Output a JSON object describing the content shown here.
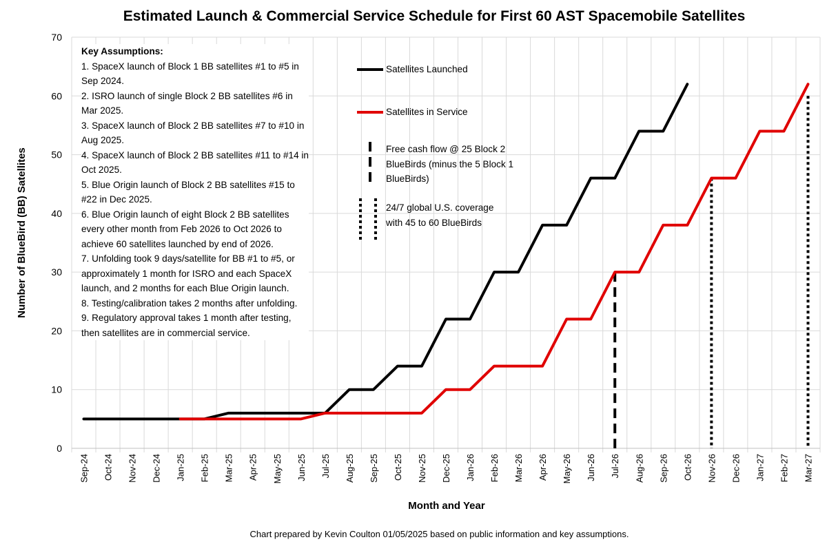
{
  "chart_data": {
    "type": "line",
    "title": "Estimated Launch & Commercial Service Schedule for First 60 AST Spacemobile Satellites",
    "xlabel": "Month and Year",
    "ylabel": "Number of BlueBird (BB) Satellites",
    "ylim": [
      0,
      70
    ],
    "yticks": [
      "0",
      "10",
      "20",
      "30",
      "40",
      "50",
      "60",
      "70"
    ],
    "grid": true,
    "categories": [
      "Sep-24",
      "Oct-24",
      "Nov-24",
      "Dec-24",
      "Jan-25",
      "Feb-25",
      "Mar-25",
      "Apr-25",
      "May-25",
      "Jun-25",
      "Jul-25",
      "Aug-25",
      "Sep-25",
      "Oct-25",
      "Nov-25",
      "Dec-25",
      "Jan-26",
      "Feb-26",
      "Mar-26",
      "Apr-26",
      "May-26",
      "Jun-26",
      "Jul-26",
      "Aug-26",
      "Sep-26",
      "Oct-26",
      "Nov-26",
      "Dec-26",
      "Jan-27",
      "Feb-27",
      "Mar-27"
    ],
    "series": [
      {
        "name": "Satellites Launched",
        "color": "#000000",
        "values": [
          5,
          5,
          5,
          5,
          5,
          5,
          6,
          6,
          6,
          6,
          6,
          10,
          10,
          14,
          14,
          22,
          22,
          30,
          30,
          38,
          38,
          46,
          46,
          54,
          54,
          62,
          null,
          null,
          null,
          null,
          null
        ]
      },
      {
        "name": "Satellites in Service",
        "color": "#e00000",
        "values": [
          null,
          null,
          null,
          null,
          5,
          5,
          5,
          5,
          5,
          5,
          6,
          6,
          6,
          6,
          6,
          10,
          10,
          14,
          14,
          14,
          22,
          22,
          30,
          30,
          38,
          38,
          46,
          46,
          54,
          54,
          62
        ]
      }
    ],
    "markers": [
      {
        "category": "Jul-26",
        "value": 30,
        "style": "dashed",
        "label": "Free cash flow @ 25 Block 2 BlueBirds (minus the 5 Block 1 BlueBirds)"
      },
      {
        "category": "Nov-26",
        "value": 46,
        "style": "dotted",
        "label": "24/7 global U.S. coverage with 45 to 60 BlueBirds"
      },
      {
        "category": "Mar-27",
        "value": 60,
        "style": "dotted",
        "label": "24/7 global U.S. coverage with 45 to 60 BlueBirds"
      }
    ],
    "legend_placement": "top-center",
    "annotations": {
      "heading": "Key Assumptions:",
      "items": [
        "1. SpaceX launch of Block 1 BB satellites #1 to #5 in Sep 2024.",
        "2. ISRO launch of single Block 2 BB satellites #6 in Mar 2025.",
        "3. SpaceX launch of Block 2 BB satellites #7 to #10 in Aug 2025.",
        "4. SpaceX launch of Block 2 BB satellites #11 to #14 in Oct 2025.",
        "5. Blue Origin launch of Block 2 BB satellites #15 to #22 in Dec 2025.",
        "6. Blue Origin launch of eight Block 2 BB satellites every other month from Feb 2026 to Oct 2026 to achieve 60 satellites launched by end of 2026.",
        "7. Unfolding took 9 days/satellite for BB #1 to #5, or approximately 1 month for ISRO and each SpaceX launch, and 2 months for each Blue Origin launch.",
        "8. Testing/calibration takes 2 months after unfolding.",
        "9. Regulatory approval takes 1 month after testing, then satellites are in commercial service."
      ]
    },
    "footer": "Chart prepared by Kevin Coulton 01/05/2025 based on public information and key assumptions."
  }
}
